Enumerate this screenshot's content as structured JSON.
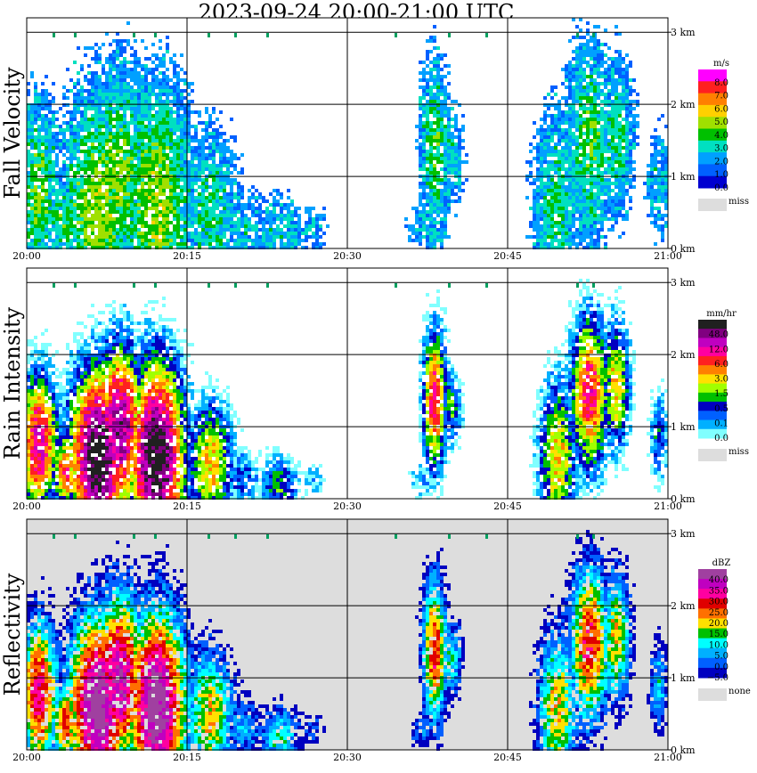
{
  "title": "2023-09-24   20:00-21:00 UTC",
  "x_ticks": [
    "20:00",
    "20:15",
    "20:30",
    "20:45",
    "21:00"
  ],
  "y_ticks": [
    "0 km",
    "1 km",
    "2 km",
    "3 km"
  ],
  "chart_data": [
    {
      "type": "heatmap",
      "ylabel": "Fall Velocity",
      "colorbar_unit": "m/s",
      "colorbar_labels": [
        "8.0",
        "7.0",
        "6.0",
        "5.0",
        "4.0",
        "3.0",
        "2.0",
        "1.0",
        "0.0"
      ],
      "colorbar_colors": [
        "#ff00ff",
        "#ff2020",
        "#ff8000",
        "#ffd000",
        "#a0e000",
        "#00c000",
        "#00e0c0",
        "#00a0ff",
        "#0060ff",
        "#0000d0"
      ],
      "missing_label": "miss",
      "missing_color": "#dddddd",
      "background": "#ffffff",
      "xlim": [
        0,
        60
      ],
      "ylim": [
        0,
        3.2
      ],
      "sparse_echo": true
    },
    {
      "type": "heatmap",
      "ylabel": "Rain Intensity",
      "colorbar_unit": "mm/hr",
      "colorbar_labels": [
        "48.0",
        "12.0",
        "6.0",
        "3.0",
        "1.5",
        "0.5",
        "0.1",
        "0.0"
      ],
      "colorbar_colors": [
        "#202020",
        "#800080",
        "#c000c0",
        "#ff00a0",
        "#ff2020",
        "#ff8000",
        "#ffe000",
        "#a0ff00",
        "#00c000",
        "#0000c0",
        "#0060ff",
        "#00b0ff",
        "#80ffff"
      ],
      "missing_label": "miss",
      "missing_color": "#dddddd",
      "background": "#ffffff",
      "xlim": [
        0,
        60
      ],
      "ylim": [
        0,
        3.2
      ]
    },
    {
      "type": "heatmap",
      "ylabel": "Reflectivity",
      "colorbar_unit": "dBZ",
      "colorbar_labels": [
        "40.0",
        "35.0",
        "30.0",
        "25.0",
        "20.0",
        "15.0",
        "10.0",
        "5.0",
        "0.0",
        "−5.0"
      ],
      "colorbar_colors": [
        "#a040a0",
        "#c000c0",
        "#ff00a0",
        "#e00000",
        "#ff7000",
        "#ffe000",
        "#00c000",
        "#00ffff",
        "#00b0ff",
        "#0060ff",
        "#0000c0"
      ],
      "missing_label": "none",
      "missing_color": "#dddddd",
      "background": "#dddddd",
      "xlim": [
        0,
        60
      ],
      "ylim": [
        0,
        3.2
      ]
    }
  ],
  "echo_cells": [
    {
      "t": 1.0,
      "h": 0.8,
      "w": 2.0,
      "d": 1.1,
      "s": 0.8
    },
    {
      "t": 3.5,
      "h": 0.4,
      "w": 1.5,
      "d": 0.6,
      "s": 0.7
    },
    {
      "t": 6.5,
      "h": 0.6,
      "w": 3.0,
      "d": 1.4,
      "s": 1.0
    },
    {
      "t": 8.5,
      "h": 1.0,
      "w": 2.5,
      "d": 1.3,
      "s": 0.9
    },
    {
      "t": 12.0,
      "h": 0.6,
      "w": 3.0,
      "d": 1.5,
      "s": 1.0
    },
    {
      "t": 17.0,
      "h": 0.5,
      "w": 2.5,
      "d": 1.0,
      "s": 0.6
    },
    {
      "t": 20.0,
      "h": 0.3,
      "w": 2.5,
      "d": 0.5,
      "s": 0.35
    },
    {
      "t": 23.5,
      "h": 0.2,
      "w": 2.0,
      "d": 0.5,
      "s": 0.45
    },
    {
      "t": 26.5,
      "h": 0.3,
      "w": 1.5,
      "d": 0.3,
      "s": 0.25
    },
    {
      "t": 38.0,
      "h": 1.4,
      "w": 1.2,
      "d": 1.1,
      "s": 0.75
    },
    {
      "t": 37.0,
      "h": 0.3,
      "w": 1.5,
      "d": 0.3,
      "s": 0.3
    },
    {
      "t": 39.5,
      "h": 1.3,
      "w": 1.2,
      "d": 0.6,
      "s": 0.45
    },
    {
      "t": 49.5,
      "h": 0.6,
      "w": 2.0,
      "d": 1.2,
      "s": 0.6
    },
    {
      "t": 52.5,
      "h": 1.5,
      "w": 2.0,
      "d": 1.2,
      "s": 0.75
    },
    {
      "t": 55.0,
      "h": 1.6,
      "w": 1.5,
      "d": 1.0,
      "s": 0.6
    },
    {
      "t": 59.0,
      "h": 0.9,
      "w": 1.0,
      "d": 0.7,
      "s": 0.4
    }
  ],
  "top_markers": [
    2.5,
    4.5,
    10.0,
    12.0,
    17.0,
    19.5,
    22.5,
    34.5,
    39.5,
    43.0,
    51.5,
    53.0
  ]
}
